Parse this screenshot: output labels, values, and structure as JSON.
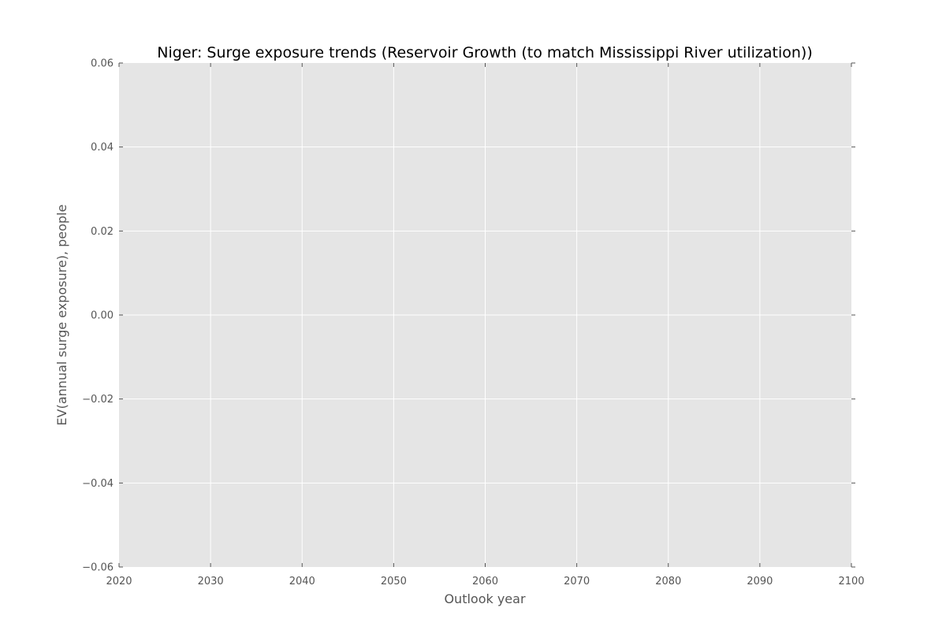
{
  "chart_data": {
    "type": "line",
    "title": "Niger: Surge exposure trends (Reservoir Growth (to match Mississippi River utilization))",
    "xlabel": "Outlook year",
    "ylabel": "EV(annual surge exposure), people",
    "xlim": [
      2020,
      2100
    ],
    "ylim": [
      -0.06,
      0.06
    ],
    "x_ticks": [
      2020,
      2030,
      2040,
      2050,
      2060,
      2070,
      2080,
      2090,
      2100
    ],
    "x_tick_labels": [
      "2020",
      "2030",
      "2040",
      "2050",
      "2060",
      "2070",
      "2080",
      "2090",
      "2100"
    ],
    "y_ticks": [
      0.06,
      0.04,
      0.02,
      0.0,
      -0.02,
      -0.04,
      -0.06
    ],
    "y_tick_labels": [
      "0.06",
      "0.04",
      "0.02",
      "0.00",
      "−0.02",
      "−0.04",
      "−0.06"
    ],
    "grid": true,
    "series": []
  },
  "colors": {
    "plot_background": "#e5e5e5",
    "grid": "#ffffff",
    "tick_mark": "#555555"
  }
}
